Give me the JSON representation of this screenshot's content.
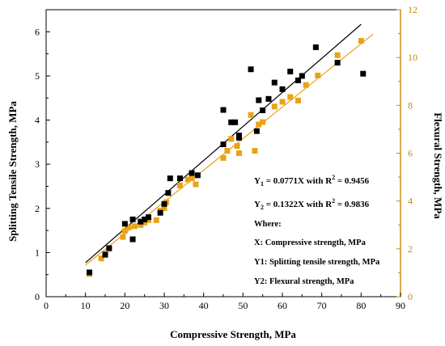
{
  "chart_data": {
    "type": "scatter",
    "xlabel": "Compressive Strength, MPa",
    "ylabel_left": "Splitting Tensile Strength, MPa",
    "ylabel_right": "Flexural Strength, MPa",
    "xlim": [
      0,
      90
    ],
    "ylim_left": [
      0,
      6.5
    ],
    "ylim_right": [
      0,
      12
    ],
    "xticks": [
      "0",
      "10",
      "20",
      "30",
      "40",
      "50",
      "60",
      "70",
      "80",
      "90"
    ],
    "yticks_left": [
      "0",
      "1",
      "2",
      "3",
      "4",
      "5",
      "6"
    ],
    "yticks_right": [
      "0",
      "2",
      "4",
      "6",
      "8",
      "10",
      "12"
    ],
    "colors": {
      "series1": "#000000",
      "series2": "#e8a317",
      "right_axis": "#c8860a"
    },
    "series": [
      {
        "axis": "left",
        "fit_slope": 0.0771,
        "fit_range": [
          10,
          80
        ],
        "points": [
          [
            11,
            0.55
          ],
          [
            15,
            0.95
          ],
          [
            16,
            1.1
          ],
          [
            20,
            1.65
          ],
          [
            22,
            1.75
          ],
          [
            22,
            1.3
          ],
          [
            24,
            1.7
          ],
          [
            25,
            1.75
          ],
          [
            26,
            1.8
          ],
          [
            29,
            1.9
          ],
          [
            30,
            2.1
          ],
          [
            31,
            2.35
          ],
          [
            31.5,
            2.68
          ],
          [
            34,
            2.68
          ],
          [
            37,
            2.8
          ],
          [
            38.5,
            2.75
          ],
          [
            45,
            4.23
          ],
          [
            45,
            3.45
          ],
          [
            47,
            3.95
          ],
          [
            48,
            3.95
          ],
          [
            49,
            3.6
          ],
          [
            49,
            3.65
          ],
          [
            52,
            5.15
          ],
          [
            53.5,
            3.75
          ],
          [
            54,
            4.45
          ],
          [
            55,
            4.22
          ],
          [
            56.5,
            4.48
          ],
          [
            58,
            4.85
          ],
          [
            60,
            4.7
          ],
          [
            62,
            5.1
          ],
          [
            64,
            4.9
          ],
          [
            65,
            5.0
          ],
          [
            68.5,
            5.65
          ],
          [
            74,
            5.3
          ],
          [
            80.5,
            5.05
          ]
        ]
      },
      {
        "axis": "right",
        "fit_slope": 0.1322,
        "fit_range": [
          10,
          83
        ],
        "points": [
          [
            11,
            0.95
          ],
          [
            14,
            1.6
          ],
          [
            15,
            1.8
          ],
          [
            16,
            2.0
          ],
          [
            19.5,
            2.5
          ],
          [
            20,
            2.75
          ],
          [
            21,
            2.9
          ],
          [
            22,
            2.4
          ],
          [
            22.5,
            2.95
          ],
          [
            24,
            3.0
          ],
          [
            25,
            3.1
          ],
          [
            26,
            3.2
          ],
          [
            28,
            3.2
          ],
          [
            29,
            3.6
          ],
          [
            30,
            3.7
          ],
          [
            30.5,
            3.95
          ],
          [
            34,
            4.65
          ],
          [
            36,
            4.9
          ],
          [
            37,
            4.95
          ],
          [
            38,
            4.7
          ],
          [
            45,
            5.8
          ],
          [
            46,
            6.1
          ],
          [
            47,
            6.6
          ],
          [
            48.5,
            6.3
          ],
          [
            49,
            6.0
          ],
          [
            52,
            7.6
          ],
          [
            53,
            6.1
          ],
          [
            54,
            7.2
          ],
          [
            55,
            7.3
          ],
          [
            58,
            7.95
          ],
          [
            60,
            8.15
          ],
          [
            62,
            8.35
          ],
          [
            64,
            8.2
          ],
          [
            66,
            8.85
          ],
          [
            69,
            9.25
          ],
          [
            74,
            10.1
          ],
          [
            80,
            10.7
          ]
        ]
      }
    ],
    "annotation": {
      "eq1": [
        "Y",
        "1",
        " = 0.0771X  with R",
        "2",
        " = 0.9456"
      ],
      "eq2": [
        "Y",
        "2",
        " = 0.1322X  with R",
        "2",
        " = 0.9836"
      ],
      "where": "Where:",
      "x_def": "X: Compressive strength, MPa",
      "y1_def": "Y1: Splitting tensile strength, MPa",
      "y2_def": "Y2: Flexural strength, MPa"
    }
  }
}
